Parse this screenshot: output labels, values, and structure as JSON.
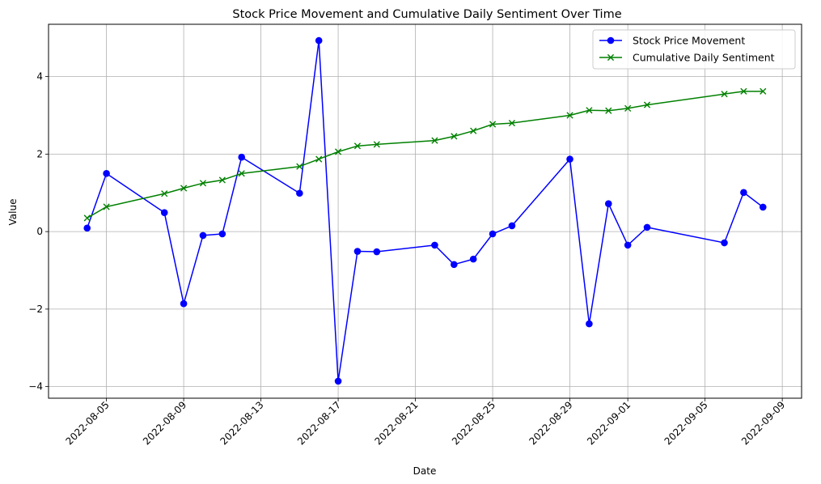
{
  "chart_data": {
    "type": "line",
    "title": "Stock Price Movement and Cumulative Daily Sentiment Over Time",
    "xlabel": "Date",
    "ylabel": "Value",
    "xlim": [
      "2022-08-02",
      "2022-09-10"
    ],
    "ylim": [
      -4.3,
      5.35
    ],
    "x_ticks": [
      "2022-08-05",
      "2022-08-09",
      "2022-08-13",
      "2022-08-17",
      "2022-08-21",
      "2022-08-25",
      "2022-08-29",
      "2022-09-01",
      "2022-09-05",
      "2022-09-09"
    ],
    "y_ticks": [
      -4,
      -2,
      0,
      2,
      4
    ],
    "y_tick_labels": [
      "−4",
      "−2",
      "0",
      "2",
      "4"
    ],
    "grid": true,
    "legend_position": "top-right",
    "x": [
      "2022-08-04",
      "2022-08-05",
      "2022-08-08",
      "2022-08-09",
      "2022-08-10",
      "2022-08-11",
      "2022-08-12",
      "2022-08-15",
      "2022-08-16",
      "2022-08-17",
      "2022-08-18",
      "2022-08-19",
      "2022-08-22",
      "2022-08-23",
      "2022-08-24",
      "2022-08-25",
      "2022-08-26",
      "2022-08-29",
      "2022-08-30",
      "2022-08-31",
      "2022-09-01",
      "2022-09-02",
      "2022-09-06",
      "2022-09-07",
      "2022-09-08"
    ],
    "series": [
      {
        "name": "Stock Price Movement",
        "color": "#0000ff",
        "marker": "circle",
        "values": [
          0.09,
          1.5,
          0.49,
          -1.86,
          -0.1,
          -0.06,
          1.92,
          0.99,
          4.93,
          -3.86,
          -0.51,
          -0.52,
          -0.35,
          -0.85,
          -0.71,
          -0.06,
          0.15,
          1.87,
          -2.38,
          0.72,
          -0.35,
          0.11,
          -0.29,
          1.01,
          0.63
        ]
      },
      {
        "name": "Cumulative Daily Sentiment",
        "color": "#008000",
        "marker": "x",
        "values": [
          0.35,
          0.64,
          0.98,
          1.12,
          1.25,
          1.33,
          1.5,
          1.68,
          1.87,
          2.06,
          2.21,
          2.25,
          2.35,
          2.46,
          2.6,
          2.77,
          2.8,
          3.0,
          3.13,
          3.12,
          3.18,
          3.27,
          3.55,
          3.62,
          3.62
        ]
      }
    ]
  }
}
